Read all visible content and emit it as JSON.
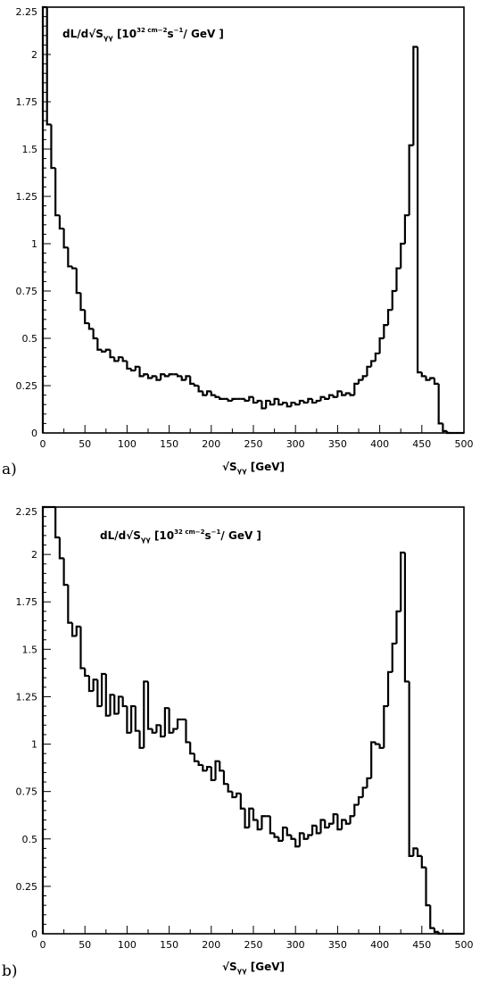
{
  "chart_data": [
    {
      "type": "histogram",
      "panel_label": "a)",
      "ylabel": "dL/d√Sγγ [10³²cm⁻²s⁻¹/ GeV ]",
      "ylabel_main": "dL/d√S",
      "ylabel_sub": "γγ",
      "ylabel_bracket": " [10",
      "ylabel_sup1": "32 cm−2",
      "ylabel_s": "s",
      "ylabel_sup2": "−1",
      "ylabel_end": "/ GeV ]",
      "xlabel": "√Sγγ [GeV]",
      "xlabel_main": "√S",
      "xlabel_sub": "γγ",
      "xlabel_end": " [GeV]",
      "xlim": [
        0,
        500
      ],
      "ylim": [
        0,
        2.25
      ],
      "xticks": [
        "0",
        "50",
        "100",
        "150",
        "200",
        "250",
        "300",
        "350",
        "400",
        "450",
        "500"
      ],
      "yticks": [
        "0",
        "0.25",
        "0.5",
        "0.75",
        "1",
        "1.25",
        "1.5",
        "1.75",
        "2",
        "2.25"
      ],
      "bin_width": 5,
      "values": [
        2.25,
        1.63,
        1.4,
        1.15,
        1.08,
        0.98,
        0.88,
        0.87,
        0.74,
        0.65,
        0.58,
        0.55,
        0.5,
        0.44,
        0.43,
        0.44,
        0.4,
        0.38,
        0.4,
        0.38,
        0.34,
        0.33,
        0.35,
        0.3,
        0.31,
        0.29,
        0.3,
        0.28,
        0.31,
        0.3,
        0.31,
        0.31,
        0.3,
        0.28,
        0.3,
        0.26,
        0.25,
        0.22,
        0.2,
        0.22,
        0.2,
        0.19,
        0.18,
        0.18,
        0.17,
        0.18,
        0.18,
        0.18,
        0.17,
        0.19,
        0.16,
        0.17,
        0.13,
        0.17,
        0.15,
        0.18,
        0.15,
        0.16,
        0.14,
        0.16,
        0.15,
        0.17,
        0.16,
        0.18,
        0.16,
        0.17,
        0.19,
        0.18,
        0.2,
        0.19,
        0.22,
        0.2,
        0.21,
        0.2,
        0.26,
        0.28,
        0.3,
        0.35,
        0.38,
        0.42,
        0.5,
        0.57,
        0.65,
        0.75,
        0.87,
        1.0,
        1.15,
        1.52,
        2.04,
        0.32,
        0.3,
        0.28,
        0.29,
        0.26,
        0.05,
        0.01,
        0,
        0,
        0,
        0
      ]
    },
    {
      "type": "histogram",
      "panel_label": "b)",
      "ylabel": "dL/d√Sγγ [10³²cm⁻²s⁻¹/ GeV ]",
      "ylabel_main": "dL/d√S",
      "ylabel_sub": "γγ",
      "ylabel_bracket": " [10",
      "ylabel_sup1": "32 cm−2",
      "ylabel_s": "s",
      "ylabel_sup2": "−1",
      "ylabel_end": "/ GeV ]",
      "xlabel": "√Sγγ [GeV]",
      "xlabel_main": "√S",
      "xlabel_sub": "γγ",
      "xlabel_end": " [GeV]",
      "xlim": [
        0,
        500
      ],
      "ylim": [
        0,
        2.25
      ],
      "xticks": [
        "0",
        "50",
        "100",
        "150",
        "200",
        "250",
        "300",
        "350",
        "400",
        "450",
        "500"
      ],
      "yticks": [
        "0",
        "0.25",
        "0.5",
        "0.75",
        "1",
        "1.25",
        "1.5",
        "1.75",
        "2",
        "2.25"
      ],
      "bin_width": 5,
      "values": [
        2.25,
        2.25,
        2.25,
        2.09,
        1.98,
        1.84,
        1.64,
        1.57,
        1.62,
        1.4,
        1.36,
        1.28,
        1.34,
        1.2,
        1.37,
        1.15,
        1.26,
        1.16,
        1.25,
        1.2,
        1.06,
        1.2,
        1.07,
        0.98,
        1.33,
        1.08,
        1.06,
        1.1,
        1.04,
        1.19,
        1.06,
        1.08,
        1.13,
        1.13,
        1.01,
        0.95,
        0.91,
        0.89,
        0.86,
        0.88,
        0.81,
        0.91,
        0.86,
        0.79,
        0.75,
        0.72,
        0.74,
        0.66,
        0.56,
        0.66,
        0.6,
        0.55,
        0.62,
        0.62,
        0.53,
        0.51,
        0.49,
        0.56,
        0.52,
        0.5,
        0.46,
        0.53,
        0.5,
        0.52,
        0.57,
        0.53,
        0.6,
        0.56,
        0.58,
        0.63,
        0.55,
        0.6,
        0.58,
        0.62,
        0.68,
        0.72,
        0.77,
        0.82,
        1.01,
        1.0,
        0.98,
        1.2,
        1.38,
        1.53,
        1.7,
        2.01,
        1.33,
        0.41,
        0.45,
        0.41,
        0.35,
        0.15,
        0.03,
        0.01,
        0,
        0,
        0,
        0,
        0,
        0
      ]
    }
  ]
}
